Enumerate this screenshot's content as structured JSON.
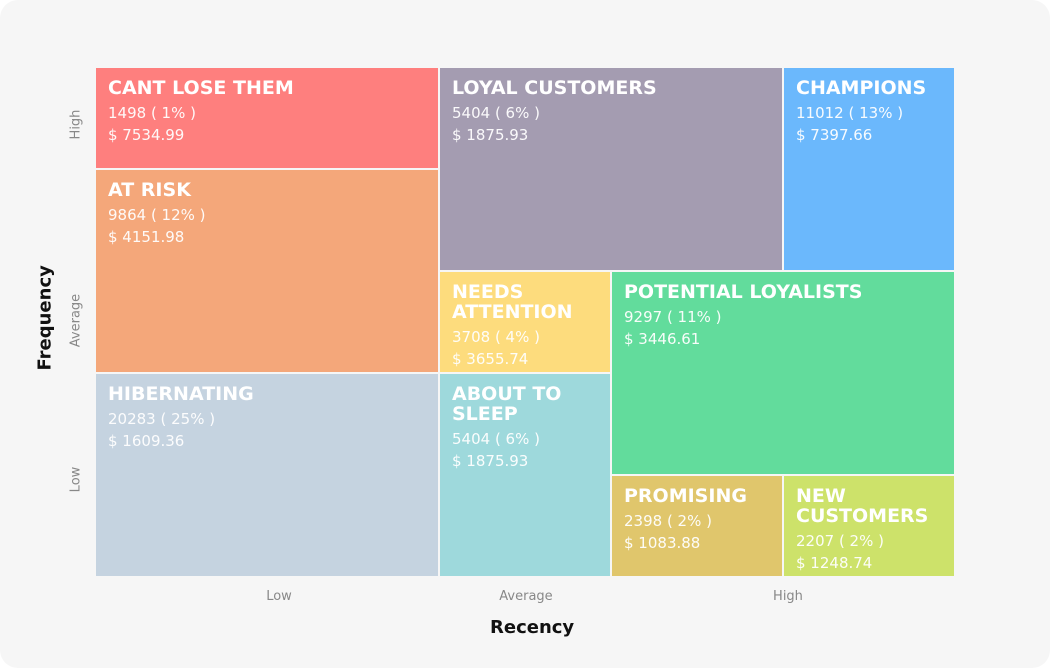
{
  "axes": {
    "x_title": "Recency",
    "y_title": "Frequency",
    "x_labels": [
      "Low",
      "Average",
      "High"
    ],
    "y_labels": [
      "High",
      "Average",
      "Low"
    ]
  },
  "segments": [
    {
      "name": "CANT LOSE THEM",
      "count": "1498 ( 1% )",
      "amount": "$ 7534.99",
      "color": "#fe7f7e"
    },
    {
      "name": "AT RISK",
      "count": "9864 ( 12% )",
      "amount": "$ 4151.98",
      "color": "#f4a77a"
    },
    {
      "name": "HIBERNATING",
      "count": "20283 ( 25% )",
      "amount": "$ 1609.36",
      "color": "#c5d3e0"
    },
    {
      "name": "LOYAL CUSTOMERS",
      "count": "5404 ( 6% )",
      "amount": "$ 1875.93",
      "color": "#a49cb1"
    },
    {
      "name": "CHAMPIONS",
      "count": "11012 ( 13% )",
      "amount": "$ 7397.66",
      "color": "#6bb8fc"
    },
    {
      "name": "NEEDS ATTENTION",
      "count": "3708 ( 4% )",
      "amount": "$ 3655.74",
      "color": "#fddc7d"
    },
    {
      "name": "ABOUT TO SLEEP",
      "count": "5404 ( 6% )",
      "amount": "$ 1875.93",
      "color": "#9ed9dc"
    },
    {
      "name": "POTENTIAL LOYALISTS",
      "count": "9297 ( 11% )",
      "amount": "$ 3446.61",
      "color": "#62dc9c"
    },
    {
      "name": "PROMISING",
      "count": "2398 ( 2% )",
      "amount": "$ 1083.88",
      "color": "#e0c66c"
    },
    {
      "name": "NEW CUSTOMERS",
      "count": "2207 ( 2% )",
      "amount": "$ 1248.74",
      "color": "#cde26a"
    }
  ]
}
